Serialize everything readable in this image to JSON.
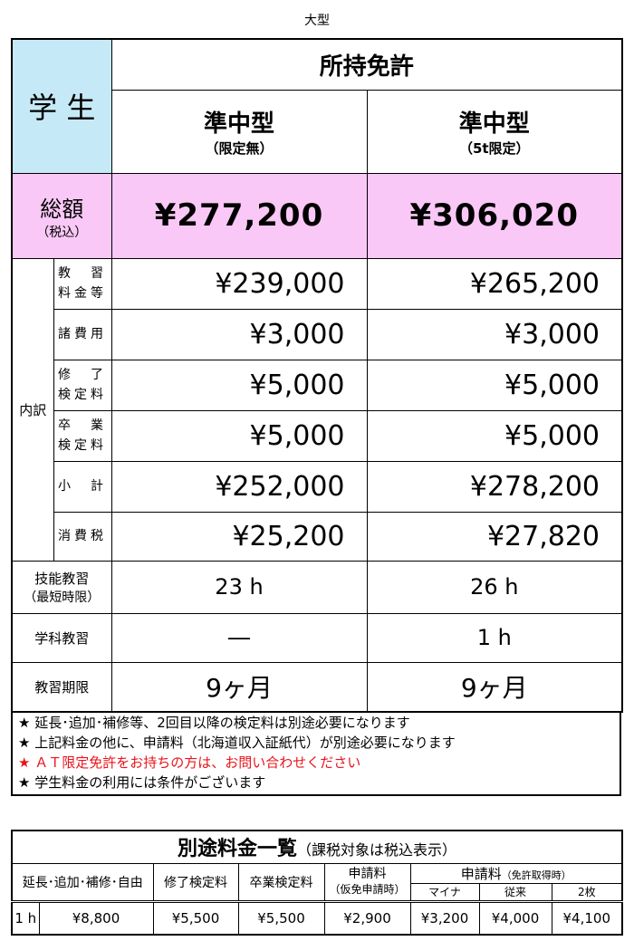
{
  "caption": "大型",
  "main": {
    "student": "学 生",
    "license_header": "所持免許",
    "columns": [
      {
        "name": "準中型",
        "note": "（限定無）"
      },
      {
        "name": "準中型",
        "note": "（5t限定）"
      }
    ],
    "total_label": "総額",
    "total_note": "（税込）",
    "totals": [
      "¥277,200",
      "¥306,020"
    ],
    "breakdown_label": "内訳",
    "breakdown": [
      {
        "label1": "教　習",
        "label2": "料金等",
        "values": [
          "¥239,000",
          "¥265,200"
        ]
      },
      {
        "label1": "諸費用",
        "label2": "",
        "values": [
          "¥3,000",
          "¥3,000"
        ]
      },
      {
        "label1": "修　了",
        "label2": "検定料",
        "values": [
          "¥5,000",
          "¥5,000"
        ]
      },
      {
        "label1": "卒　業",
        "label2": "検定料",
        "values": [
          "¥5,000",
          "¥5,000"
        ]
      },
      {
        "label1": "小　計",
        "label2": "",
        "values": [
          "¥252,000",
          "¥278,200"
        ]
      },
      {
        "label1": "消費税",
        "label2": "",
        "values": [
          "¥25,200",
          "¥27,820"
        ]
      }
    ],
    "rows": [
      {
        "label": "技能教習",
        "note": "（最短時限）",
        "values": [
          "23 h",
          "26 h"
        ]
      },
      {
        "label": "学科教習",
        "note": "",
        "values": [
          "―",
          "1 h"
        ]
      },
      {
        "label": "教習期限",
        "note": "",
        "values": [
          "9ヶ月",
          "9ヶ月"
        ]
      }
    ]
  },
  "notes": [
    {
      "text": "★ 延長･追加･補修等、2回目以降の検定料は別途必要になります",
      "color": "#000000"
    },
    {
      "text": "★ 上記料金の他に、申請料（北海道収入証紙代）が別途必要になります",
      "color": "#000000"
    },
    {
      "text": "★ ＡＴ限定免許をお持ちの方は、お問い合わせください",
      "color": "#e8141b"
    },
    {
      "text": "★ 学生料金の利用には条件がございます",
      "color": "#000000"
    }
  ],
  "extra": {
    "title": "別途料金一覧",
    "title_note": "（課税対象は税込表示）",
    "h_extension": "延長･追加･補修･自由",
    "h_completion": "修了検定料",
    "h_graduation": "卒業検定料",
    "h_app": "申請料",
    "h_app_note": "（仮免申請時）",
    "h_app2": "申請料",
    "h_app2_note": "（免許取得時）",
    "h_sub": [
      "マイナ",
      "従来",
      "2枚"
    ],
    "unit": "1 h",
    "values": [
      "¥8,800",
      "¥5,500",
      "¥5,500",
      "¥2,900",
      "¥3,200",
      "¥4,000",
      "¥4,100"
    ]
  }
}
